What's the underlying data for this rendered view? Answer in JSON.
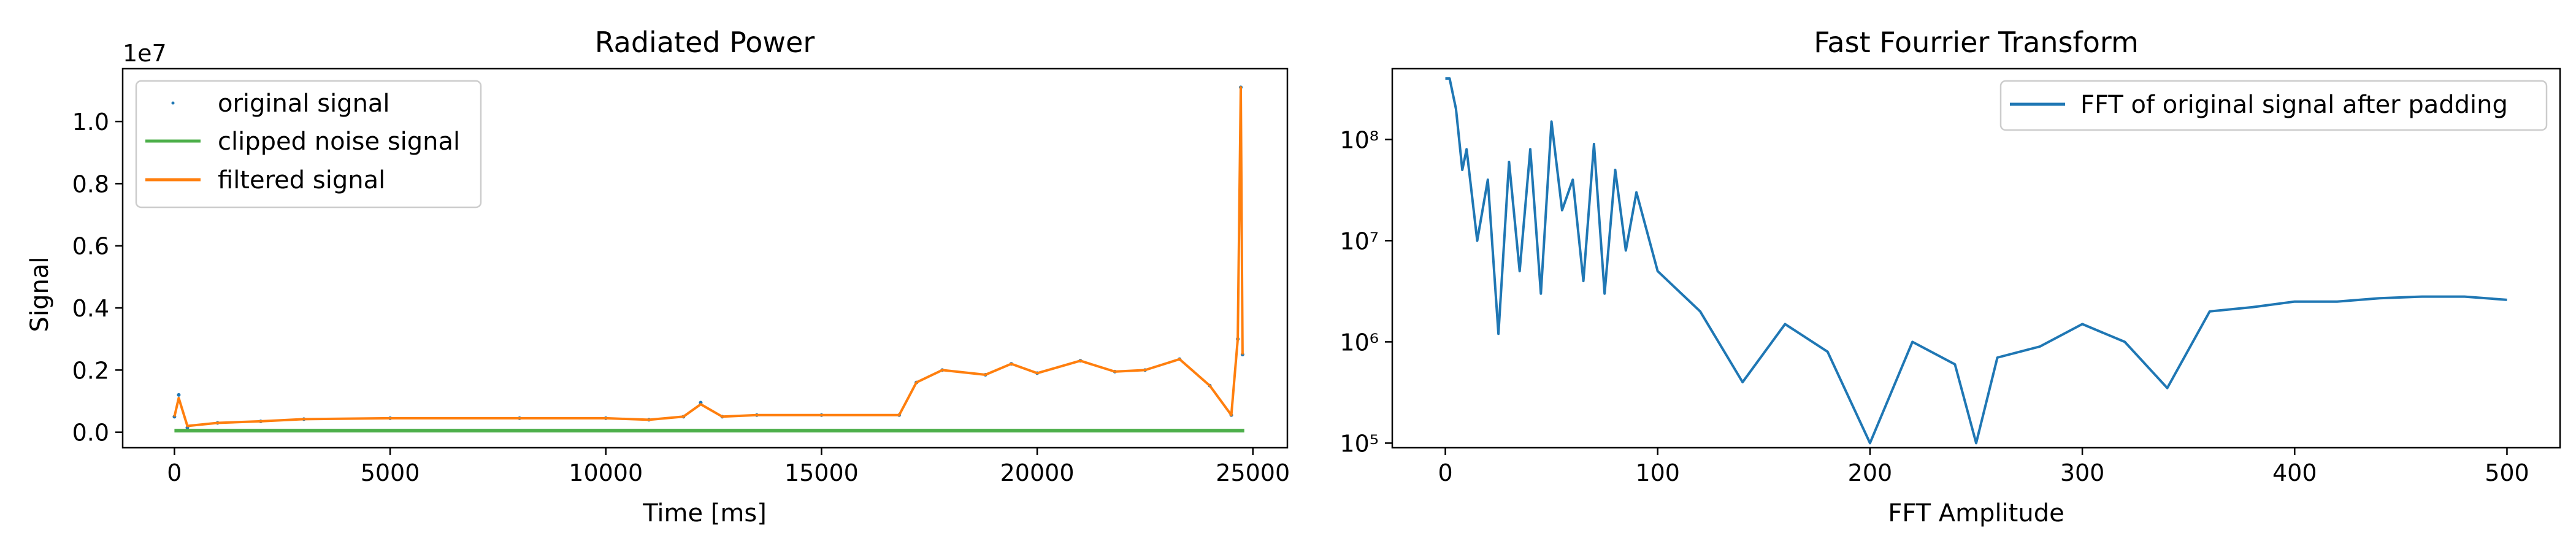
{
  "chart_data": [
    {
      "type": "line",
      "title": "Radiated Power",
      "xlabel": "Time [ms]",
      "ylabel": "Signal",
      "offset_text": "1e7",
      "xlim": [
        -1200,
        25800
      ],
      "ylim": [
        -0.5,
        11.7
      ],
      "xticks": [
        0,
        5000,
        10000,
        15000,
        20000,
        25000
      ],
      "xtick_labels": [
        "0",
        "5000",
        "10000",
        "15000",
        "20000",
        "25000"
      ],
      "yticks": [
        0,
        2,
        4,
        6,
        8,
        10
      ],
      "ytick_labels": [
        "0.0",
        "0.2",
        "0.4",
        "0.6",
        "0.8",
        "1.0"
      ],
      "legend_position": "upper-left",
      "grid": false,
      "series": [
        {
          "name": "original signal",
          "style": "points",
          "color": "#1f77b4",
          "x": [
            0,
            100,
            300,
            1000,
            2000,
            3000,
            5000,
            8000,
            10000,
            11000,
            11800,
            12200,
            12700,
            13500,
            15000,
            16800,
            17200,
            17800,
            18800,
            19400,
            20000,
            21000,
            21800,
            22500,
            23300,
            24000,
            24500,
            24650,
            24720,
            24760
          ],
          "values": [
            0.5,
            1.2,
            0.15,
            0.3,
            0.35,
            0.42,
            0.45,
            0.45,
            0.45,
            0.4,
            0.5,
            0.95,
            0.5,
            0.55,
            0.55,
            0.55,
            1.6,
            2.0,
            1.85,
            2.2,
            1.9,
            2.3,
            1.95,
            2.0,
            2.35,
            1.5,
            0.55,
            3.0,
            11.1,
            2.5
          ]
        },
        {
          "name": "clipped noise signal",
          "style": "line",
          "color": "#4daf4a",
          "x": [
            0,
            3000,
            6000,
            9000,
            12000,
            15000,
            18000,
            21000,
            24000,
            24800
          ],
          "values": [
            0.05,
            0.05,
            0.05,
            0.05,
            0.05,
            0.05,
            0.05,
            0.05,
            0.05,
            0.05
          ]
        },
        {
          "name": "filtered signal",
          "style": "line",
          "color": "#ff7f0e",
          "x": [
            0,
            100,
            300,
            1000,
            2000,
            3000,
            5000,
            8000,
            10000,
            11000,
            11800,
            12200,
            12700,
            13500,
            15000,
            16800,
            17200,
            17800,
            18800,
            19400,
            20000,
            21000,
            21800,
            22500,
            23300,
            24000,
            24500,
            24650,
            24720,
            24760
          ],
          "values": [
            0.5,
            1.1,
            0.2,
            0.3,
            0.35,
            0.42,
            0.45,
            0.45,
            0.45,
            0.4,
            0.5,
            0.9,
            0.5,
            0.55,
            0.55,
            0.55,
            1.6,
            2.0,
            1.85,
            2.2,
            1.9,
            2.3,
            1.95,
            2.0,
            2.35,
            1.5,
            0.55,
            3.0,
            11.1,
            2.5
          ]
        }
      ]
    },
    {
      "type": "line",
      "title": "Fast Fourrier Transform",
      "xlabel": "FFT Amplitude",
      "ylabel": "",
      "yscale": "log",
      "xlim": [
        -25,
        525
      ],
      "ylim": [
        90000,
        500000000
      ],
      "xticks": [
        0,
        100,
        200,
        300,
        400,
        500
      ],
      "xtick_labels": [
        "0",
        "100",
        "200",
        "300",
        "400",
        "500"
      ],
      "yticks": [
        100000,
        1000000,
        10000000,
        100000000
      ],
      "ytick_labels": [
        "10⁵",
        "10⁶",
        "10⁷",
        "10⁸"
      ],
      "legend_position": "upper-right",
      "grid": false,
      "series": [
        {
          "name": "FFT of original signal after padding",
          "color": "#1f77b4",
          "x": [
            0,
            2,
            5,
            8,
            10,
            15,
            20,
            25,
            30,
            35,
            40,
            45,
            50,
            55,
            60,
            65,
            70,
            75,
            80,
            85,
            90,
            100,
            120,
            140,
            160,
            180,
            200,
            220,
            240,
            250,
            260,
            280,
            300,
            320,
            340,
            360,
            380,
            400,
            420,
            440,
            460,
            480,
            500
          ],
          "values": [
            400000000,
            400000000,
            200000000,
            50000000,
            80000000,
            10000000,
            40000000,
            1200000,
            60000000,
            5000000,
            80000000,
            3000000,
            150000000,
            20000000,
            40000000,
            4000000,
            90000000,
            3000000,
            50000000,
            8000000,
            30000000,
            5000000,
            2000000,
            400000,
            1500000,
            800000,
            100000,
            1000000,
            600000,
            100000,
            700000,
            900000,
            1500000,
            1000000,
            350000,
            2000000,
            2200000,
            2500000,
            2500000,
            2700000,
            2800000,
            2800000,
            2600000
          ]
        }
      ]
    }
  ]
}
